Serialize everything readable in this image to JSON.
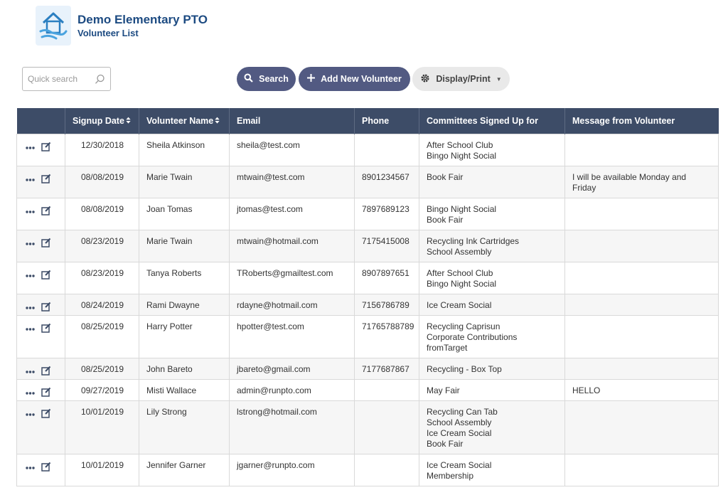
{
  "header": {
    "org_name": "Demo Elementary PTO",
    "page_title": "Volunteer List",
    "logo_icon": "house-hands-icon"
  },
  "toolbar": {
    "search_placeholder": "Quick search",
    "search_label": "Search",
    "add_label": "Add New Volunteer",
    "display_label": "Display/Print"
  },
  "colors": {
    "primary_button": "#525a82",
    "table_header": "#3d4c67",
    "brand_title": "#1d4b82"
  },
  "table": {
    "columns": [
      {
        "label": "",
        "sortable": false
      },
      {
        "label": "Signup Date",
        "sortable": true
      },
      {
        "label": "Volunteer Name",
        "sortable": true
      },
      {
        "label": "Email",
        "sortable": false
      },
      {
        "label": "Phone",
        "sortable": false
      },
      {
        "label": "Committees Signed Up for",
        "sortable": false
      },
      {
        "label": "Message from Volunteer",
        "sortable": false
      }
    ],
    "rows": [
      {
        "date": "12/30/2018",
        "name": "Sheila Atkinson",
        "email": "sheila@test.com",
        "phone": "",
        "committees": [
          "After School Club",
          "Bingo Night Social"
        ],
        "message": ""
      },
      {
        "date": "08/08/2019",
        "name": "Marie Twain",
        "email": "mtwain@test.com",
        "phone": "8901234567",
        "committees": [
          "Book Fair"
        ],
        "message": "I will be available Monday and Friday"
      },
      {
        "date": "08/08/2019",
        "name": "Joan Tomas",
        "email": "jtomas@test.com",
        "phone": "7897689123",
        "committees": [
          "Bingo Night Social",
          "Book Fair"
        ],
        "message": ""
      },
      {
        "date": "08/23/2019",
        "name": "Marie Twain",
        "email": "mtwain@hotmail.com",
        "phone": "7175415008",
        "committees": [
          "Recycling Ink Cartridges",
          "School Assembly"
        ],
        "message": ""
      },
      {
        "date": "08/23/2019",
        "name": "Tanya Roberts",
        "email": "TRoberts@gmailtest.com",
        "phone": "8907897651",
        "committees": [
          "After School Club",
          "Bingo Night Social"
        ],
        "message": ""
      },
      {
        "date": "08/24/2019",
        "name": "Rami Dwayne",
        "email": "rdayne@hotmail.com",
        "phone": "7156786789",
        "committees": [
          "Ice Cream Social"
        ],
        "message": ""
      },
      {
        "date": "08/25/2019",
        "name": "Harry Potter",
        "email": "hpotter@test.com",
        "phone": "71765788789",
        "committees": [
          "Recycling Caprisun",
          "Corporate Contributions fromTarget"
        ],
        "message": ""
      },
      {
        "date": "08/25/2019",
        "name": "John Bareto",
        "email": "jbareto@gmail.com",
        "phone": "7177687867",
        "committees": [
          "Recycling - Box Top"
        ],
        "message": ""
      },
      {
        "date": "09/27/2019",
        "name": "Misti Wallace",
        "email": "admin@runpto.com",
        "phone": "",
        "committees": [
          "May Fair"
        ],
        "message": "HELLO"
      },
      {
        "date": "10/01/2019",
        "name": "Lily Strong",
        "email": "lstrong@hotmail.com",
        "phone": "",
        "committees": [
          "Recycling Can Tab",
          "School Assembly",
          "Ice Cream Social",
          "Book Fair"
        ],
        "message": ""
      },
      {
        "date": "10/01/2019",
        "name": "Jennifer Garner",
        "email": "jgarner@runpto.com",
        "phone": "",
        "committees": [
          "Ice Cream Social",
          "Membership"
        ],
        "message": ""
      }
    ]
  }
}
